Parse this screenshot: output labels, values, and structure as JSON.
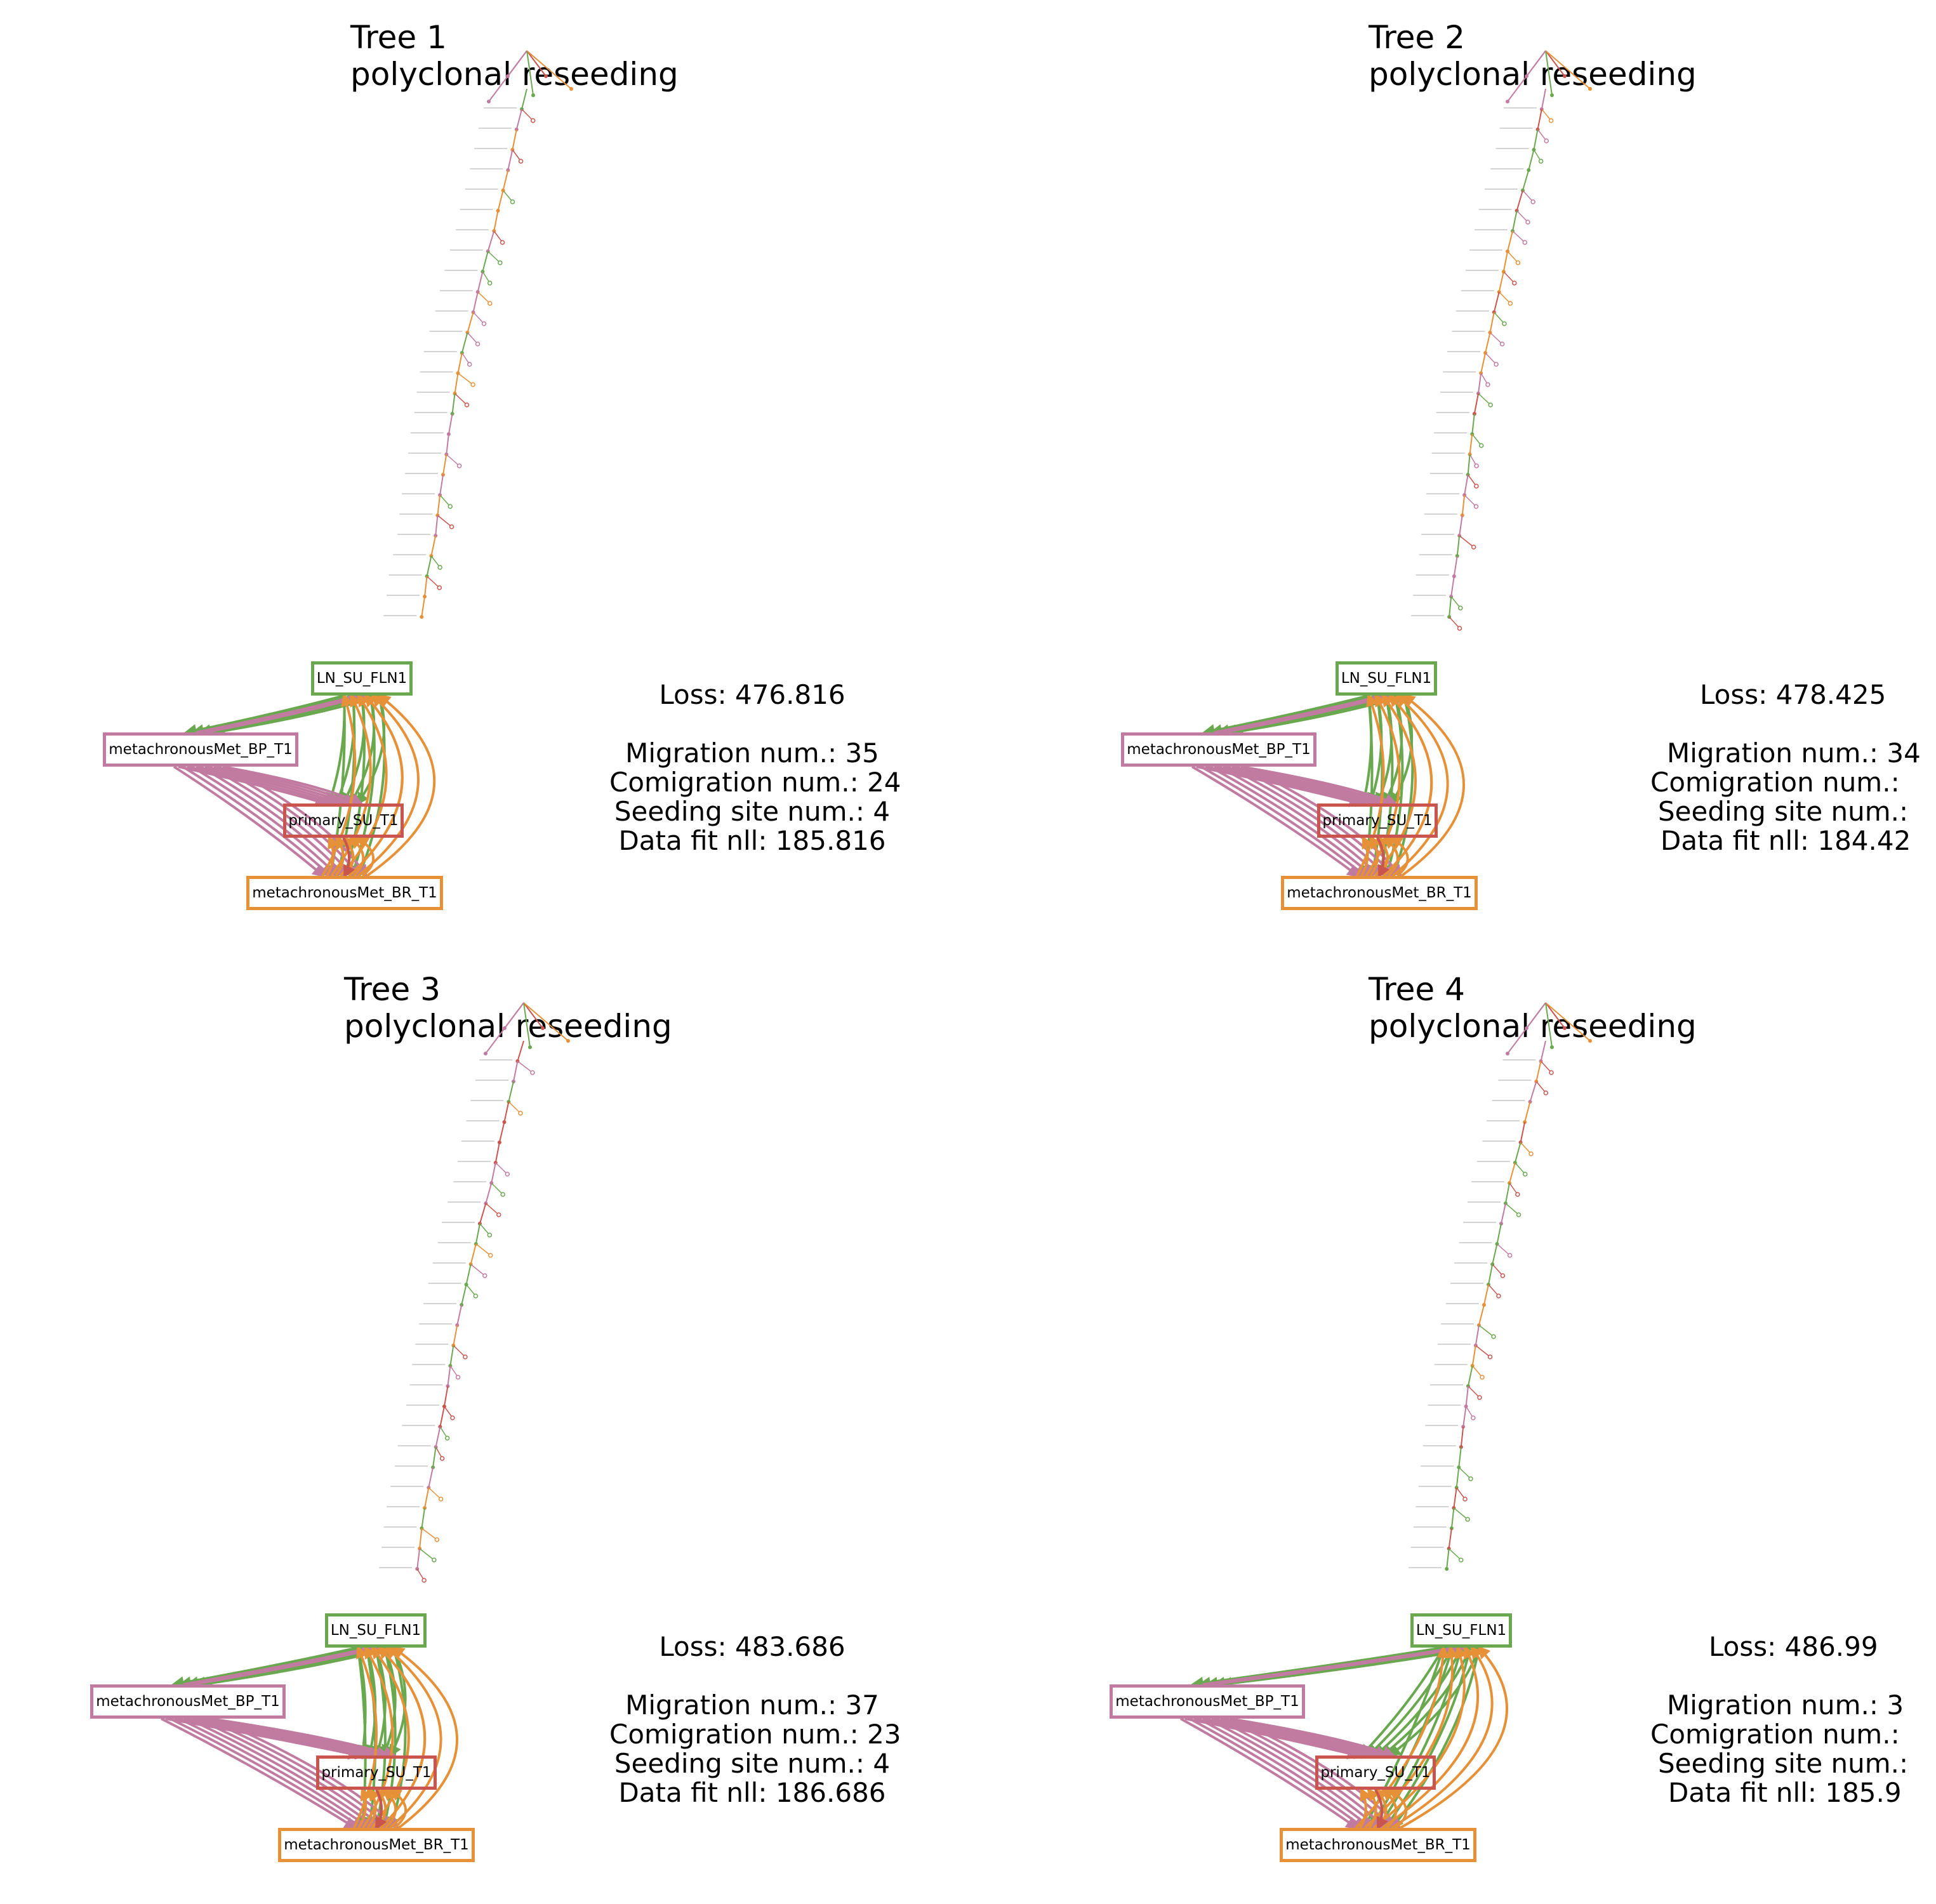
{
  "colors": {
    "LN_SU_FLN1": "#6aa84f",
    "metachronousMet_BP_T1": "#c27ba0",
    "primary_SU_T1": "#c9554e",
    "metachronousMet_BR_T1": "#e69138"
  },
  "sites": [
    "LN_SU_FLN1",
    "metachronousMet_BP_T1",
    "primary_SU_T1",
    "metachronousMet_BR_T1"
  ],
  "panels": [
    {
      "title": "Tree 1",
      "subtitle": "polyclonal reseeding",
      "stats": {
        "loss": "Loss: 476.816",
        "migration": "Migration num.: 35",
        "comigration": "Comigration num.: 24",
        "seeding": "Seeding site num.: 4",
        "datafit": "Data fit nll: 185.816"
      }
    },
    {
      "title": "Tree 2",
      "subtitle": "polyclonal reseeding",
      "stats": {
        "loss": "Loss: 478.425",
        "migration": "Migration num.: 34",
        "comigration": "Comigration num.: ",
        "seeding": "Seeding site num.:",
        "datafit": "Data fit nll: 184.42"
      }
    },
    {
      "title": "Tree 3",
      "subtitle": "polyclonal reseeding",
      "stats": {
        "loss": "Loss: 483.686",
        "migration": "Migration num.: 37",
        "comigration": "Comigration num.: 23",
        "seeding": "Seeding site num.: 4",
        "datafit": "Data fit nll: 186.686"
      }
    },
    {
      "title": "Tree 4",
      "subtitle": "polyclonal reseeding",
      "stats": {
        "loss": "Loss: 486.99",
        "migration": "Migration num.: 3",
        "comigration": "Comigration num.: ",
        "seeding": "Seeding site num.:",
        "datafit": "Data fit nll: 185.9"
      }
    }
  ]
}
